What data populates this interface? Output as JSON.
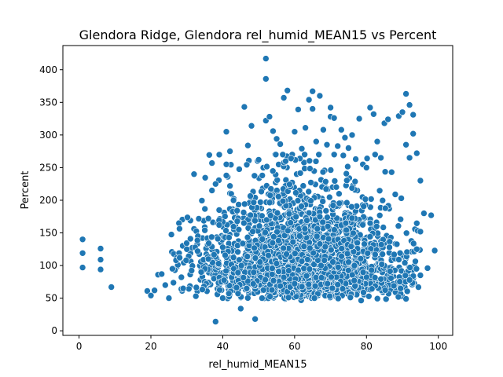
{
  "chart_data": {
    "type": "scatter",
    "title": "Glendora Ridge, Glendora rel_humid_MEAN15 vs Percent",
    "xlabel": "rel_humid_MEAN15",
    "ylabel": "Percent",
    "xlim": [
      -4.5,
      104
    ],
    "ylim": [
      -7,
      437
    ],
    "xticks": [
      0,
      20,
      40,
      60,
      80,
      100
    ],
    "yticks": [
      0,
      50,
      100,
      150,
      200,
      250,
      300,
      350,
      400
    ],
    "grid": false,
    "marker_color": "#1f77b4",
    "series": [
      {
        "points": [
          [
            1,
            140
          ],
          [
            1,
            119
          ],
          [
            1,
            97
          ],
          [
            6,
            126
          ],
          [
            6,
            109
          ],
          [
            6,
            94
          ],
          [
            9,
            67
          ],
          [
            19,
            61
          ],
          [
            20,
            54
          ],
          [
            21,
            62
          ],
          [
            22,
            86
          ],
          [
            23,
            87
          ],
          [
            24,
            70
          ],
          [
            25,
            50
          ],
          [
            26,
            95
          ],
          [
            27,
            108
          ],
          [
            28,
            112
          ],
          [
            29,
            65
          ],
          [
            30,
            125
          ],
          [
            31,
            141
          ],
          [
            32,
            240
          ],
          [
            33,
            122
          ],
          [
            34,
            90
          ],
          [
            35,
            154
          ],
          [
            36,
            172
          ],
          [
            36,
            110
          ],
          [
            37,
            257
          ],
          [
            37,
            215
          ],
          [
            38,
            225
          ],
          [
            38,
            14
          ],
          [
            39,
            185
          ],
          [
            39,
            162
          ],
          [
            40,
            128
          ],
          [
            41,
            305
          ],
          [
            41,
            255
          ],
          [
            41,
            238
          ],
          [
            42,
            275
          ],
          [
            42,
            222
          ],
          [
            43,
            200
          ],
          [
            44,
            184
          ],
          [
            45,
            34
          ],
          [
            46,
            343
          ],
          [
            47,
            284
          ],
          [
            48,
            314
          ],
          [
            49,
            18
          ],
          [
            50,
            262
          ],
          [
            51,
            238
          ],
          [
            52,
            417
          ],
          [
            52,
            386
          ],
          [
            52,
            322
          ],
          [
            53,
            328
          ],
          [
            54,
            306
          ],
          [
            55,
            294
          ],
          [
            56,
            286
          ],
          [
            57,
            357
          ],
          [
            58,
            368
          ],
          [
            59,
            264
          ],
          [
            60,
            305
          ],
          [
            61,
            339
          ],
          [
            62,
            279
          ],
          [
            63,
            311
          ],
          [
            64,
            354
          ],
          [
            65,
            367
          ],
          [
            65,
            340
          ],
          [
            66,
            290
          ],
          [
            67,
            360
          ],
          [
            68,
            308
          ],
          [
            69,
            285
          ],
          [
            70,
            342
          ],
          [
            70,
            328
          ],
          [
            71,
            326
          ],
          [
            72,
            283
          ],
          [
            73,
            308
          ],
          [
            74,
            296
          ],
          [
            75,
            280
          ],
          [
            76,
            300
          ],
          [
            77,
            263
          ],
          [
            78,
            325
          ],
          [
            79,
            255
          ],
          [
            80,
            250
          ],
          [
            81,
            342
          ],
          [
            82,
            332
          ],
          [
            83,
            290
          ],
          [
            84,
            265
          ],
          [
            85,
            318
          ],
          [
            86,
            324
          ],
          [
            87,
            243
          ],
          [
            88,
            209
          ],
          [
            89,
            329
          ],
          [
            90,
            335
          ],
          [
            91,
            363
          ],
          [
            91,
            285
          ],
          [
            92,
            265
          ],
          [
            92,
            346
          ],
          [
            93,
            331
          ],
          [
            93,
            302
          ],
          [
            94,
            272
          ],
          [
            95,
            230
          ],
          [
            96,
            180
          ],
          [
            98,
            177
          ],
          [
            99,
            123
          ],
          [
            95,
            152
          ],
          [
            94,
            125
          ],
          [
            97,
            96
          ],
          [
            95,
            85
          ],
          [
            91,
            49
          ],
          [
            92,
            78
          ]
        ],
        "cloud": {
          "count": 2400,
          "x_range": [
            25,
            95
          ],
          "x_center": 62,
          "y_floor": 45,
          "y_median": 95,
          "y_upper_typical": 200
        }
      }
    ]
  }
}
